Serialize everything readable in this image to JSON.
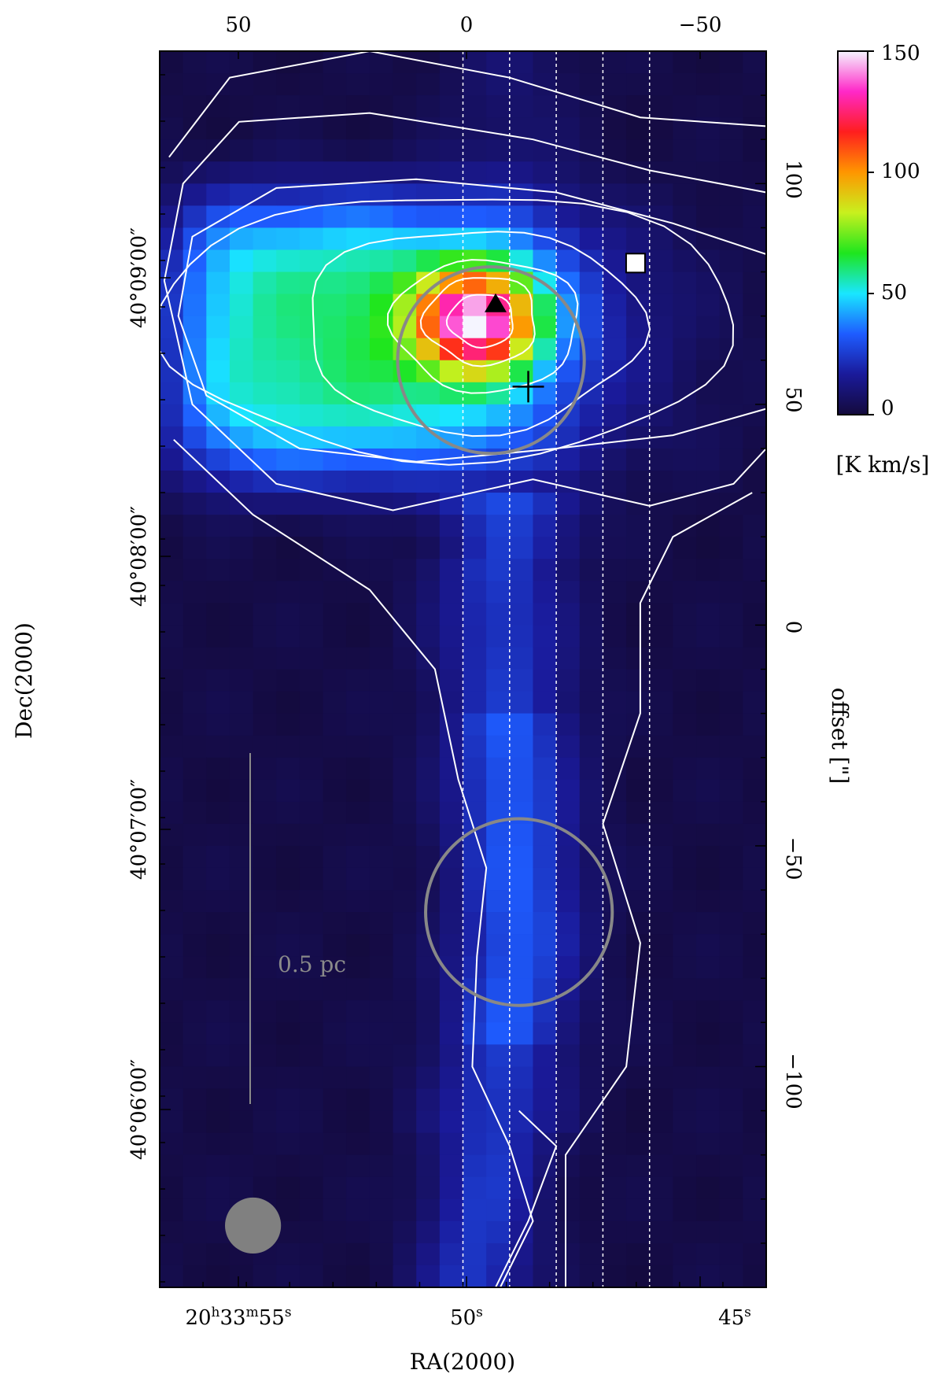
{
  "chart_data": {
    "type": "heatmap",
    "title": "",
    "xlabel": "RA(2000)",
    "ylabel": "Dec(2000)",
    "offset_label": "offset [\"]",
    "colorbar_label": "[K km/s]",
    "colorbar_range": [
      0,
      150
    ],
    "colorbar_ticks": [
      "0",
      "50",
      "100",
      "150"
    ],
    "colormap": [
      "#140a3c",
      "#1a1a9a",
      "#1e5cff",
      "#19e6ff",
      "#1ee61e",
      "#c8f01e",
      "#ff9600",
      "#ff1e1e",
      "#ff28c8",
      "#f5f5ff"
    ],
    "x_tick_labels": [
      "20h33m55s",
      "50s",
      "45s"
    ],
    "x_tick_parts": {
      "left": {
        "a": "20",
        "h": "h",
        "b": "33",
        "m": "m",
        "c": "55",
        "s": "s"
      },
      "mid": {
        "a": "50",
        "s": "s"
      },
      "right": {
        "a": "45",
        "s": "s"
      }
    },
    "y_tick_labels": [
      "40°09′00″",
      "40°08′00″",
      "40°07′00″",
      "40°06′00″"
    ],
    "top_offset_ticks": [
      "50",
      "0",
      "−50"
    ],
    "right_offset_ticks": [
      "100",
      "50",
      "0",
      "−50",
      "−100"
    ],
    "scale_bar_label": "0.5 pc",
    "peak_map_value": 150,
    "ra_range_offset_arcsec": [
      65,
      -65
    ],
    "dec_offset_range_arcsec": [
      -150,
      130
    ],
    "markers": [
      {
        "kind": "triangle",
        "color": "#000000",
        "x": -7,
        "y": 73
      },
      {
        "kind": "square",
        "color": "#ffffff",
        "x": -37,
        "y": 82
      },
      {
        "kind": "cross",
        "color": "#000000",
        "x": -14,
        "y": 54
      },
      {
        "kind": "circle",
        "color": "#888888",
        "x": -6,
        "y": 60,
        "r": 20
      },
      {
        "kind": "circle",
        "color": "#888888",
        "x": -12,
        "y": -65,
        "r": 20
      },
      {
        "kind": "beam",
        "color": "#808080",
        "x": 45,
        "y": -136,
        "r": 6
      }
    ],
    "cuts_x_offset": [
      0,
      -10,
      -20,
      -30,
      -40
    ],
    "contour_color": "#ffffff",
    "cut_line_color": "#ffffff"
  }
}
